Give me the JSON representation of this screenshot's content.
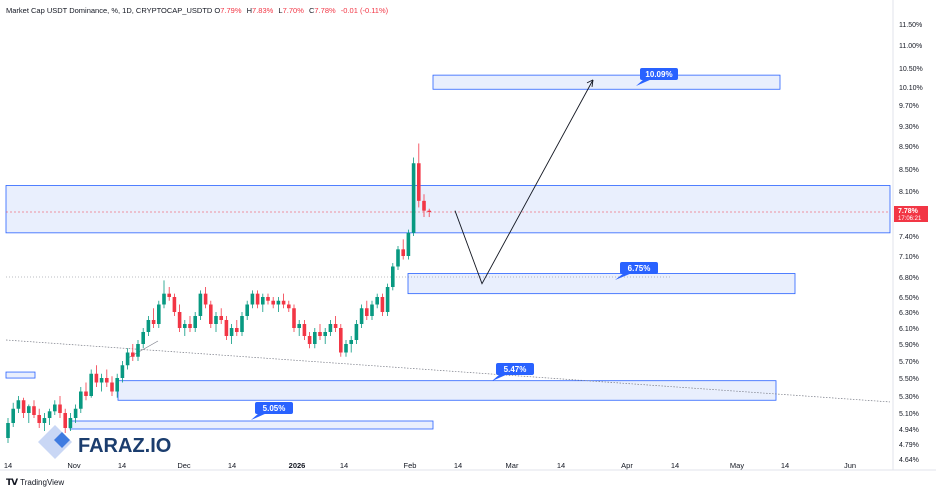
{
  "header": {
    "symbol_line": "Market Cap USDT Dominance, %, 1D, CRYPTOCAP_USDTD",
    "ohlc": [
      {
        "label": "O",
        "value": "7.79%"
      },
      {
        "label": "H",
        "value": "7.83%"
      },
      {
        "label": "L",
        "value": "7.70%"
      },
      {
        "label": "C",
        "value": "7.78%"
      },
      {
        "label": "",
        "value": "-0.01 (-0.11%)"
      }
    ]
  },
  "footer": {
    "brand": "TradingView"
  },
  "watermark": {
    "text": "FARAZ.IO"
  },
  "colors": {
    "up": "#089981",
    "down": "#f23645",
    "zone_fill": "#e5ecfd",
    "zone_border": "#2962ff",
    "label_bg": "#2962ff",
    "price_tag": "#f23645"
  },
  "chart_data": {
    "type": "candlestick",
    "title": "Market Cap USDT Dominance, %, 1D, CRYPTOCAP_USDTD",
    "y_unit": "%",
    "x_ticks": [
      "14",
      "Nov",
      "14",
      "Dec",
      "14",
      "2026",
      "14",
      "Feb",
      "14",
      "Mar",
      "14",
      "Apr",
      "14",
      "May",
      "14",
      "Jun"
    ],
    "y_ticks": [
      "11.50%",
      "11.00%",
      "10.50%",
      "10.10%",
      "9.70%",
      "9.30%",
      "8.90%",
      "8.50%",
      "8.10%",
      "7.78%",
      "7.40%",
      "7.10%",
      "6.80%",
      "6.50%",
      "6.30%",
      "6.10%",
      "5.90%",
      "5.70%",
      "5.50%",
      "5.30%",
      "5.10%",
      "4.94%",
      "4.79%",
      "4.64%"
    ],
    "last_price": {
      "value": "7.78%",
      "countdown": "17:06:21"
    },
    "candles_o_h_l_c": [
      [
        4.85,
        5.05,
        4.8,
        5.0
      ],
      [
        5.0,
        5.22,
        4.96,
        5.15
      ],
      [
        5.15,
        5.3,
        5.1,
        5.25
      ],
      [
        5.25,
        5.28,
        5.05,
        5.1
      ],
      [
        5.1,
        5.2,
        5.0,
        5.18
      ],
      [
        5.18,
        5.25,
        5.05,
        5.08
      ],
      [
        5.08,
        5.15,
        4.95,
        5.0
      ],
      [
        5.0,
        5.1,
        4.92,
        5.05
      ],
      [
        5.05,
        5.15,
        4.98,
        5.12
      ],
      [
        5.12,
        5.25,
        5.08,
        5.2
      ],
      [
        5.2,
        5.3,
        5.05,
        5.1
      ],
      [
        5.1,
        5.15,
        4.9,
        4.95
      ],
      [
        4.95,
        5.1,
        4.92,
        5.05
      ],
      [
        5.05,
        5.2,
        5.0,
        5.15
      ],
      [
        5.15,
        5.4,
        5.1,
        5.35
      ],
      [
        5.35,
        5.45,
        5.25,
        5.3
      ],
      [
        5.3,
        5.6,
        5.28,
        5.55
      ],
      [
        5.55,
        5.65,
        5.4,
        5.45
      ],
      [
        5.45,
        5.55,
        5.35,
        5.5
      ],
      [
        5.5,
        5.6,
        5.4,
        5.45
      ],
      [
        5.45,
        5.52,
        5.3,
        5.35
      ],
      [
        5.35,
        5.55,
        5.28,
        5.5
      ],
      [
        5.5,
        5.7,
        5.45,
        5.65
      ],
      [
        5.65,
        5.85,
        5.6,
        5.8
      ],
      [
        5.8,
        5.9,
        5.7,
        5.75
      ],
      [
        5.75,
        5.95,
        5.7,
        5.9
      ],
      [
        5.9,
        6.1,
        5.85,
        6.05
      ],
      [
        6.05,
        6.25,
        6.0,
        6.2
      ],
      [
        6.2,
        6.35,
        6.1,
        6.15
      ],
      [
        6.15,
        6.45,
        6.1,
        6.4
      ],
      [
        6.4,
        6.75,
        6.35,
        6.55
      ],
      [
        6.55,
        6.65,
        6.45,
        6.5
      ],
      [
        6.5,
        6.55,
        6.25,
        6.3
      ],
      [
        6.3,
        6.4,
        6.05,
        6.1
      ],
      [
        6.1,
        6.2,
        6.0,
        6.15
      ],
      [
        6.15,
        6.25,
        6.05,
        6.1
      ],
      [
        6.1,
        6.3,
        6.05,
        6.25
      ],
      [
        6.25,
        6.6,
        6.2,
        6.55
      ],
      [
        6.55,
        6.65,
        6.35,
        6.4
      ],
      [
        6.4,
        6.45,
        6.1,
        6.15
      ],
      [
        6.15,
        6.3,
        6.05,
        6.25
      ],
      [
        6.25,
        6.35,
        6.15,
        6.2
      ],
      [
        6.2,
        6.25,
        5.95,
        6.0
      ],
      [
        6.0,
        6.15,
        5.9,
        6.1
      ],
      [
        6.1,
        6.2,
        6.0,
        6.05
      ],
      [
        6.05,
        6.3,
        6.0,
        6.25
      ],
      [
        6.25,
        6.45,
        6.2,
        6.4
      ],
      [
        6.4,
        6.6,
        6.35,
        6.55
      ],
      [
        6.55,
        6.6,
        6.35,
        6.4
      ],
      [
        6.4,
        6.55,
        6.3,
        6.5
      ],
      [
        6.5,
        6.55,
        6.4,
        6.45
      ],
      [
        6.45,
        6.5,
        6.35,
        6.4
      ],
      [
        6.4,
        6.5,
        6.3,
        6.45
      ],
      [
        6.45,
        6.55,
        6.35,
        6.4
      ],
      [
        6.4,
        6.45,
        6.3,
        6.35
      ],
      [
        6.35,
        6.4,
        6.05,
        6.1
      ],
      [
        6.1,
        6.2,
        6.0,
        6.15
      ],
      [
        6.15,
        6.2,
        5.95,
        6.0
      ],
      [
        6.0,
        6.05,
        5.85,
        5.9
      ],
      [
        5.9,
        6.1,
        5.85,
        6.05
      ],
      [
        6.05,
        6.15,
        5.95,
        6.0
      ],
      [
        6.0,
        6.1,
        5.9,
        6.05
      ],
      [
        6.05,
        6.2,
        6.0,
        6.15
      ],
      [
        6.15,
        6.25,
        6.05,
        6.1
      ],
      [
        6.1,
        6.15,
        5.75,
        5.8
      ],
      [
        5.8,
        5.95,
        5.75,
        5.9
      ],
      [
        5.9,
        6.0,
        5.8,
        5.95
      ],
      [
        5.95,
        6.2,
        5.9,
        6.15
      ],
      [
        6.15,
        6.4,
        6.1,
        6.35
      ],
      [
        6.35,
        6.45,
        6.2,
        6.25
      ],
      [
        6.25,
        6.45,
        6.2,
        6.4
      ],
      [
        6.4,
        6.55,
        6.35,
        6.5
      ],
      [
        6.5,
        6.55,
        6.25,
        6.3
      ],
      [
        6.3,
        6.7,
        6.25,
        6.65
      ],
      [
        6.65,
        7.0,
        6.6,
        6.95
      ],
      [
        6.95,
        7.25,
        6.9,
        7.2
      ],
      [
        7.2,
        7.35,
        7.05,
        7.1
      ],
      [
        7.1,
        7.5,
        7.05,
        7.45
      ],
      [
        7.45,
        8.7,
        7.4,
        8.6
      ],
      [
        8.6,
        8.95,
        7.85,
        7.95
      ],
      [
        7.95,
        8.05,
        7.7,
        7.8
      ],
      [
        7.8,
        7.83,
        7.7,
        7.78
      ]
    ],
    "zones": [
      {
        "name": "zone-upper-target",
        "from": 10.05,
        "to": 10.35,
        "label": "10.09%"
      },
      {
        "name": "zone-resistance",
        "from": 7.45,
        "to": 8.2,
        "label": ""
      },
      {
        "name": "zone-6-75",
        "from": 6.55,
        "to": 6.85,
        "label": "6.75%"
      },
      {
        "name": "zone-5-47",
        "from": 5.25,
        "to": 5.47,
        "label": "5.47%"
      },
      {
        "name": "zone-5-05",
        "from": 4.94,
        "to": 5.02,
        "label": "5.05%"
      },
      {
        "name": "zone-left-small",
        "from": 5.5,
        "to": 5.57,
        "label": ""
      }
    ],
    "projection_path": [
      {
        "x_index": 82,
        "y": 7.8
      },
      {
        "x_index": 91,
        "y": 6.7
      },
      {
        "x_index": 112,
        "y": 10.25
      }
    ],
    "trendline": {
      "from": {
        "x_index": 0,
        "y": 5.95
      },
      "to": {
        "x_index": 170,
        "y": 5.23
      }
    },
    "grid": false,
    "legend": "none"
  }
}
